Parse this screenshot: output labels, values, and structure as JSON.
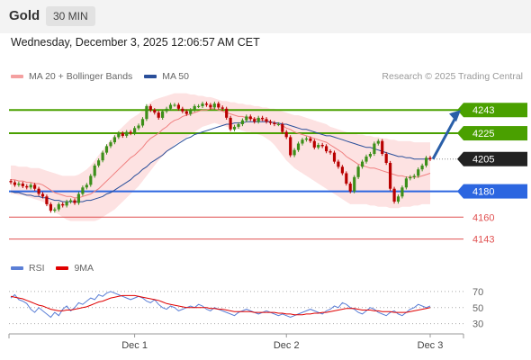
{
  "header": {
    "title": "Gold",
    "timeframe": "30 MIN",
    "datetime": "Wednesday, December 3, 2025 12:06:57 AM CET",
    "credit": "Research © 2025 Trading Central"
  },
  "legend": [
    {
      "label": "MA 20 + Bollinger Bands",
      "color": "#f08080"
    },
    {
      "label": "MA 50",
      "color": "#2a4f9a"
    }
  ],
  "rsi_legend": [
    {
      "label": "RSI",
      "color": "#5b7fd6"
    },
    {
      "label": "9MA",
      "color": "#e00000"
    }
  ],
  "chart_data": [
    {
      "type": "line",
      "title": "Gold 30 MIN",
      "x_ticks": [
        "Dec 1",
        "Dec 2",
        "Dec 3"
      ],
      "ylim": [
        4133,
        4262
      ],
      "levels": [
        {
          "label": "4243",
          "value": 4243,
          "color": "#4aa000",
          "style": "resistance"
        },
        {
          "label": "4225",
          "value": 4225,
          "color": "#4aa000",
          "style": "resistance"
        },
        {
          "label": "4205",
          "value": 4205,
          "color": "#222222",
          "style": "current"
        },
        {
          "label": "4180",
          "value": 4180,
          "color": "#2c66e0",
          "style": "pivot"
        },
        {
          "label": "4160",
          "value": 4160,
          "color": "#e05050",
          "style": "support"
        },
        {
          "label": "4143",
          "value": 4143,
          "color": "#e05050",
          "style": "support"
        }
      ],
      "series": [
        {
          "name": "Price",
          "values": [
            4187,
            4185,
            4186,
            4184,
            4183,
            4185,
            4182,
            4178,
            4176,
            4170,
            4165,
            4166,
            4170,
            4169,
            4172,
            4173,
            4171,
            4178,
            4183,
            4185,
            4192,
            4200,
            4204,
            4210,
            4215,
            4218,
            4222,
            4225,
            4223,
            4226,
            4225,
            4229,
            4231,
            4236,
            4246,
            4243,
            4241,
            4237,
            4242,
            4244,
            4247,
            4247,
            4244,
            4242,
            4240,
            4243,
            4246,
            4246,
            4248,
            4247,
            4245,
            4248,
            4245,
            4244,
            4237,
            4228,
            4230,
            4232,
            4235,
            4238,
            4236,
            4234,
            4237,
            4236,
            4234,
            4233,
            4232,
            4232,
            4226,
            4222,
            4208,
            4212,
            4217,
            4220,
            4221,
            4219,
            4214,
            4216,
            4215,
            4211,
            4210,
            4203,
            4199,
            4194,
            4186,
            4180,
            4191,
            4199,
            4203,
            4207,
            4209,
            4217,
            4219,
            4209,
            4202,
            4182,
            4172,
            4176,
            4183,
            4190,
            4191,
            4192,
            4197,
            4200,
            4206,
            4205
          ]
        },
        {
          "name": "MA 20",
          "values": [
            4189,
            4189,
            4188,
            4188,
            4187,
            4187,
            4186,
            4186,
            4185,
            4183,
            4181,
            4179,
            4178,
            4177,
            4176,
            4176,
            4175,
            4175,
            4176,
            4177,
            4178,
            4180,
            4182,
            4185,
            4188,
            4191,
            4194,
            4197,
            4200,
            4203,
            4206,
            4208,
            4211,
            4214,
            4218,
            4221,
            4223,
            4225,
            4228,
            4230,
            4233,
            4235,
            4236,
            4238,
            4239,
            4240,
            4241,
            4242,
            4243,
            4243,
            4244,
            4244,
            4243,
            4242,
            4241,
            4240,
            4239,
            4238,
            4238,
            4237,
            4237,
            4236,
            4236,
            4235,
            4235,
            4234,
            4233,
            4232,
            4231,
            4229,
            4228,
            4226,
            4225,
            4224,
            4223,
            4222,
            4221,
            4220,
            4219,
            4218,
            4216,
            4214,
            4212,
            4210,
            4207,
            4205,
            4203,
            4201,
            4200,
            4199,
            4198,
            4198,
            4197,
            4196,
            4195,
            4194,
            4193,
            4192,
            4192,
            4191,
            4191,
            4191,
            4191,
            4192,
            4193,
            4194
          ]
        },
        {
          "name": "MA 50",
          "values": [
            4180,
            4179,
            4179,
            4178,
            4177,
            4177,
            4176,
            4176,
            4175,
            4175,
            4174,
            4173,
            4173,
            4172,
            4172,
            4172,
            4172,
            4172,
            4172,
            4173,
            4173,
            4174,
            4175,
            4176,
            4178,
            4179,
            4181,
            4183,
            4185,
            4187,
            4189,
            4192,
            4194,
            4197,
            4199,
            4202,
            4204,
            4206,
            4208,
            4211,
            4213,
            4215,
            4217,
            4219,
            4221,
            4222,
            4224,
            4225,
            4226,
            4227,
            4228,
            4229,
            4230,
            4231,
            4232,
            4232,
            4233,
            4233,
            4233,
            4234,
            4234,
            4234,
            4234,
            4234,
            4234,
            4234,
            4233,
            4233,
            4232,
            4232,
            4231,
            4230,
            4229,
            4228,
            4228,
            4227,
            4226,
            4225,
            4224,
            4223,
            4223,
            4222,
            4221,
            4220,
            4219,
            4218,
            4217,
            4216,
            4215,
            4214,
            4214,
            4213,
            4212,
            4211,
            4210,
            4209,
            4208,
            4207,
            4207,
            4206,
            4206,
            4205,
            4205,
            4205,
            4205,
            4205
          ]
        },
        {
          "name": "Bollinger Upper",
          "values": [
            4200,
            4200,
            4199,
            4199,
            4199,
            4198,
            4198,
            4198,
            4197,
            4196,
            4195,
            4194,
            4193,
            4192,
            4192,
            4192,
            4192,
            4193,
            4195,
            4197,
            4200,
            4204,
            4208,
            4212,
            4216,
            4220,
            4224,
            4227,
            4230,
            4233,
            4236,
            4238,
            4240,
            4243,
            4246,
            4249,
            4251,
            4252,
            4253,
            4254,
            4255,
            4256,
            4256,
            4256,
            4256,
            4255,
            4255,
            4254,
            4254,
            4253,
            4253,
            4252,
            4251,
            4250,
            4250,
            4249,
            4249,
            4248,
            4248,
            4247,
            4247,
            4246,
            4246,
            4245,
            4245,
            4244,
            4244,
            4243,
            4242,
            4241,
            4240,
            4239,
            4239,
            4238,
            4237,
            4236,
            4235,
            4234,
            4233,
            4232,
            4230,
            4229,
            4228,
            4227,
            4226,
            4225,
            4225,
            4224,
            4224,
            4223,
            4223,
            4222,
            4222,
            4221,
            4221,
            4220,
            4220,
            4219,
            4219,
            4219,
            4219,
            4218,
            4218,
            4218,
            4218,
            4218
          ]
        },
        {
          "name": "Bollinger Lower",
          "values": [
            4178,
            4178,
            4177,
            4177,
            4176,
            4175,
            4174,
            4173,
            4172,
            4170,
            4167,
            4164,
            4162,
            4160,
            4158,
            4157,
            4157,
            4157,
            4157,
            4157,
            4157,
            4157,
            4158,
            4160,
            4162,
            4164,
            4166,
            4169,
            4172,
            4175,
            4178,
            4181,
            4184,
            4188,
            4192,
            4196,
            4200,
            4204,
            4207,
            4210,
            4213,
            4216,
            4218,
            4220,
            4222,
            4224,
            4226,
            4228,
            4230,
            4231,
            4232,
            4233,
            4232,
            4231,
            4230,
            4229,
            4228,
            4228,
            4227,
            4226,
            4226,
            4225,
            4224,
            4223,
            4221,
            4219,
            4216,
            4212,
            4208,
            4204,
            4201,
            4198,
            4196,
            4194,
            4192,
            4190,
            4188,
            4186,
            4184,
            4182,
            4180,
            4178,
            4176,
            4174,
            4172,
            4170,
            4170,
            4170,
            4170,
            4170,
            4169,
            4169,
            4168,
            4168,
            4168,
            4167,
            4167,
            4167,
            4168,
            4168,
            4168,
            4169,
            4169,
            4170,
            4170,
            4170
          ]
        }
      ]
    },
    {
      "type": "line",
      "title": "RSI",
      "ylim": [
        24,
        80
      ],
      "y_ticks": [
        "70",
        "50",
        "30"
      ],
      "series": [
        {
          "name": "RSI",
          "values": [
            62,
            66,
            60,
            58,
            55,
            48,
            44,
            50,
            46,
            42,
            38,
            44,
            40,
            48,
            52,
            46,
            50,
            56,
            54,
            58,
            62,
            60,
            66,
            64,
            68,
            70,
            68,
            66,
            64,
            62,
            60,
            62,
            64,
            62,
            58,
            56,
            60,
            54,
            50,
            48,
            52,
            50,
            46,
            48,
            50,
            52,
            50,
            54,
            52,
            48,
            46,
            50,
            48,
            46,
            44,
            42,
            40,
            44,
            46,
            48,
            46,
            44,
            42,
            44,
            46,
            44,
            42,
            40,
            42,
            40,
            38,
            40,
            42,
            44,
            46,
            48,
            46,
            44,
            42,
            46,
            48,
            52,
            50,
            56,
            54,
            50,
            48,
            44,
            42,
            46,
            50,
            48,
            44,
            42,
            40,
            44,
            46,
            42,
            40,
            44,
            48,
            50,
            54,
            52,
            50,
            52
          ]
        },
        {
          "name": "9MA",
          "values": [
            64,
            63,
            62,
            61,
            59,
            57,
            55,
            53,
            52,
            50,
            48,
            47,
            46,
            46,
            47,
            47,
            48,
            49,
            50,
            51,
            53,
            55,
            57,
            58,
            60,
            62,
            63,
            64,
            65,
            65,
            65,
            65,
            64,
            63,
            62,
            61,
            60,
            59,
            57,
            55,
            54,
            53,
            52,
            51,
            50,
            50,
            50,
            50,
            50,
            50,
            49,
            49,
            48,
            48,
            47,
            46,
            45,
            45,
            45,
            45,
            45,
            44,
            44,
            44,
            44,
            44,
            44,
            43,
            43,
            42,
            42,
            41,
            41,
            41,
            42,
            42,
            43,
            43,
            44,
            44,
            45,
            46,
            47,
            48,
            49,
            49,
            49,
            48,
            47,
            47,
            47,
            46,
            46,
            45,
            45,
            45,
            44,
            44,
            44,
            44,
            45,
            46,
            47,
            48,
            49,
            50
          ]
        }
      ]
    }
  ]
}
